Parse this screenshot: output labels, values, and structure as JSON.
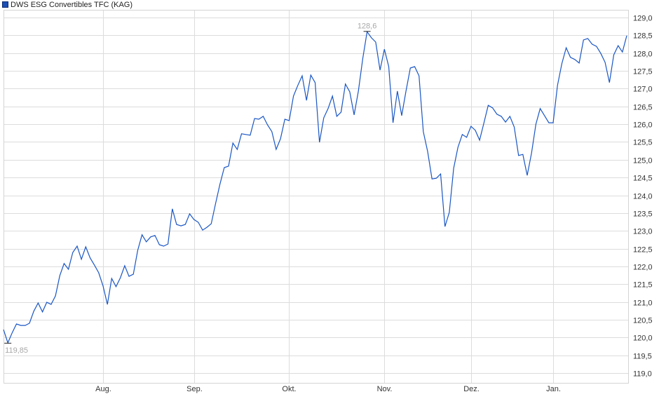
{
  "chart_data": {
    "type": "line",
    "title": "",
    "legend": {
      "position": "top-left",
      "entries": [
        "DWS ESG Convertibles TFC (KAG)"
      ]
    },
    "series": [
      {
        "name": "DWS ESG Convertibles TFC (KAG)",
        "color": "#1a56c4",
        "values": [
          120.22,
          119.85,
          120.13,
          120.38,
          120.34,
          120.34,
          120.4,
          120.74,
          120.97,
          120.72,
          120.99,
          120.93,
          121.17,
          121.74,
          122.08,
          121.92,
          122.39,
          122.57,
          122.2,
          122.55,
          122.24,
          122.04,
          121.82,
          121.45,
          120.93,
          121.66,
          121.43,
          121.68,
          122.02,
          121.72,
          121.78,
          122.45,
          122.89,
          122.69,
          122.83,
          122.87,
          122.61,
          122.57,
          122.63,
          123.62,
          123.18,
          123.14,
          123.18,
          123.48,
          123.32,
          123.24,
          123.02,
          123.1,
          123.2,
          123.77,
          124.31,
          124.78,
          124.82,
          125.47,
          125.29,
          125.73,
          125.71,
          125.69,
          126.16,
          126.14,
          126.22,
          125.98,
          125.79,
          125.29,
          125.59,
          126.14,
          126.1,
          126.79,
          127.09,
          127.36,
          126.67,
          127.38,
          127.17,
          125.49,
          126.18,
          126.44,
          126.79,
          126.22,
          126.34,
          127.13,
          126.91,
          126.26,
          126.93,
          127.84,
          128.6,
          128.43,
          128.31,
          127.52,
          128.11,
          127.62,
          126.04,
          126.93,
          126.24,
          126.93,
          127.58,
          127.62,
          127.36,
          125.79,
          125.23,
          124.46,
          124.48,
          124.6,
          123.12,
          123.52,
          124.76,
          125.35,
          125.71,
          125.63,
          125.94,
          125.83,
          125.55,
          126.04,
          126.53,
          126.46,
          126.28,
          126.22,
          126.06,
          126.22,
          125.92,
          125.12,
          125.15,
          124.56,
          125.19,
          126.0,
          126.44,
          126.24,
          126.04,
          126.04,
          127.09,
          127.7,
          128.15,
          127.88,
          127.82,
          127.72,
          128.37,
          128.41,
          128.25,
          128.19,
          127.99,
          127.74,
          127.17,
          127.95,
          128.21,
          128.03,
          128.49
        ]
      }
    ],
    "x_ticks": [
      {
        "label": "Aug.",
        "index": 23
      },
      {
        "label": "Sep.",
        "index": 44
      },
      {
        "label": "Okt.",
        "index": 66
      },
      {
        "label": "Nov.",
        "index": 88
      },
      {
        "label": "Dez.",
        "index": 108
      },
      {
        "label": "Jan.",
        "index": 127
      }
    ],
    "y_ticks": [
      "119,0",
      "119,5",
      "120,0",
      "120,5",
      "121,0",
      "121,5",
      "122,0",
      "122,5",
      "123,0",
      "123,5",
      "124,0",
      "124,5",
      "125,0",
      "125,5",
      "126,0",
      "126,5",
      "127,0",
      "127,5",
      "128,0",
      "128,5",
      "129,0"
    ],
    "ylim": [
      118.72,
      129.22
    ],
    "y_axis_position": "right",
    "grid": true,
    "annotations": {
      "min": {
        "label": "119,85",
        "index": 1,
        "value": 119.85
      },
      "max": {
        "label": "128,6",
        "index": 84,
        "value": 128.6
      }
    },
    "grid_color": "#dcdcdc",
    "annotation_color": "#a8a8a8"
  }
}
